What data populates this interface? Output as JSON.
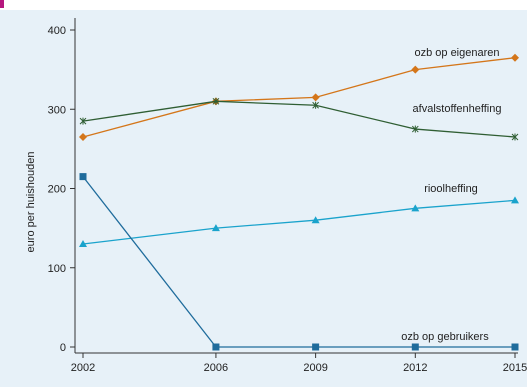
{
  "chart_data": {
    "type": "line",
    "title": "",
    "xlabel": "",
    "ylabel": "euro per huishouden",
    "x": [
      2002,
      2006,
      2009,
      2012,
      2015
    ],
    "xlim": [
      2002,
      2015
    ],
    "ylim": [
      0,
      400
    ],
    "yticks": [
      0,
      100,
      200,
      300,
      400
    ],
    "grid": false,
    "legend": "none (direct labels)",
    "plot_background": "#e7f1f8",
    "series": [
      {
        "name": "ozb op eigenaren",
        "values": [
          265,
          310,
          315,
          350,
          365
        ],
        "color": "#d4761a",
        "marker": "diamond"
      },
      {
        "name": "afvalstoffenheffing",
        "values": [
          285,
          310,
          305,
          275,
          265
        ],
        "color": "#2f5e33",
        "marker": "star"
      },
      {
        "name": "rioolheffing",
        "values": [
          130,
          150,
          160,
          175,
          185
        ],
        "color": "#1aa3cc",
        "marker": "triangle"
      },
      {
        "name": "ozb op gebruikers",
        "values": [
          215,
          0,
          0,
          0,
          0
        ],
        "color": "#1f6c9c",
        "marker": "square"
      }
    ]
  }
}
